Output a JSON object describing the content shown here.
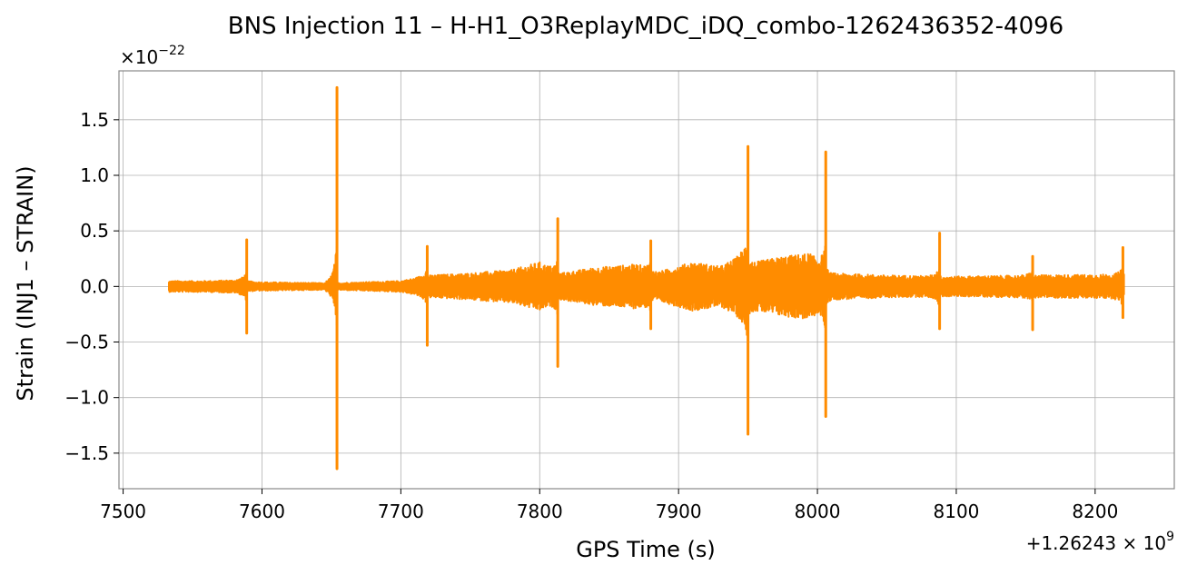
{
  "chart_data": {
    "type": "line",
    "title": "BNS Injection 11 – H-H1_O3ReplayMDC_iDQ_combo-1262436352-4096",
    "xlabel": "GPS Time (s)",
    "ylabel": "Strain (INJ1 – STRAIN)",
    "x_offset_label": "+1.26243 × 10^9",
    "y_scale_label": "×10^-22",
    "xlim": [
      7497,
      8257
    ],
    "ylim": [
      -1.82,
      1.94
    ],
    "x_ticks": [
      7500,
      7600,
      7700,
      7800,
      7900,
      8000,
      8100,
      8200
    ],
    "y_ticks": [
      -1.5,
      -1.0,
      -0.5,
      0.0,
      0.5,
      1.0,
      1.5
    ],
    "x_tick_labels": [
      "7500",
      "7600",
      "7700",
      "7800",
      "7900",
      "8000",
      "8100",
      "8200"
    ],
    "y_tick_labels": [
      "−1.5",
      "−1.0",
      "−0.5",
      "0.0",
      "0.5",
      "1.0",
      "1.5"
    ],
    "grid": true,
    "series_color": "#ff8c00",
    "data_start": 7533,
    "data_end": 8221,
    "envelope": [
      [
        7533,
        0.05
      ],
      [
        7560,
        0.05
      ],
      [
        7585,
        0.06
      ],
      [
        7595,
        0.04
      ],
      [
        7650,
        0.03
      ],
      [
        7700,
        0.05
      ],
      [
        7720,
        0.1
      ],
      [
        7750,
        0.12
      ],
      [
        7780,
        0.15
      ],
      [
        7800,
        0.22
      ],
      [
        7815,
        0.12
      ],
      [
        7840,
        0.17
      ],
      [
        7870,
        0.2
      ],
      [
        7885,
        0.13
      ],
      [
        7910,
        0.22
      ],
      [
        7930,
        0.18
      ],
      [
        7945,
        0.28
      ],
      [
        7955,
        0.22
      ],
      [
        7975,
        0.27
      ],
      [
        7995,
        0.3
      ],
      [
        8010,
        0.12
      ],
      [
        8050,
        0.1
      ],
      [
        8100,
        0.09
      ],
      [
        8150,
        0.1
      ],
      [
        8221,
        0.11
      ]
    ],
    "spikes": [
      {
        "x": 7589,
        "ymax": 0.42,
        "ymin": -0.42
      },
      {
        "x": 7654,
        "ymax": 1.79,
        "ymin": -1.64
      },
      {
        "x": 7719,
        "ymax": 0.36,
        "ymin": -0.53
      },
      {
        "x": 7813,
        "ymax": 0.61,
        "ymin": -0.72
      },
      {
        "x": 7880,
        "ymax": 0.41,
        "ymin": -0.38
      },
      {
        "x": 7950,
        "ymax": 1.26,
        "ymin": -1.33
      },
      {
        "x": 8006,
        "ymax": 1.21,
        "ymin": -1.17
      },
      {
        "x": 8088,
        "ymax": 0.48,
        "ymin": -0.38
      },
      {
        "x": 8155,
        "ymax": 0.27,
        "ymin": -0.39
      },
      {
        "x": 8220,
        "ymax": 0.35,
        "ymin": -0.28
      }
    ]
  }
}
